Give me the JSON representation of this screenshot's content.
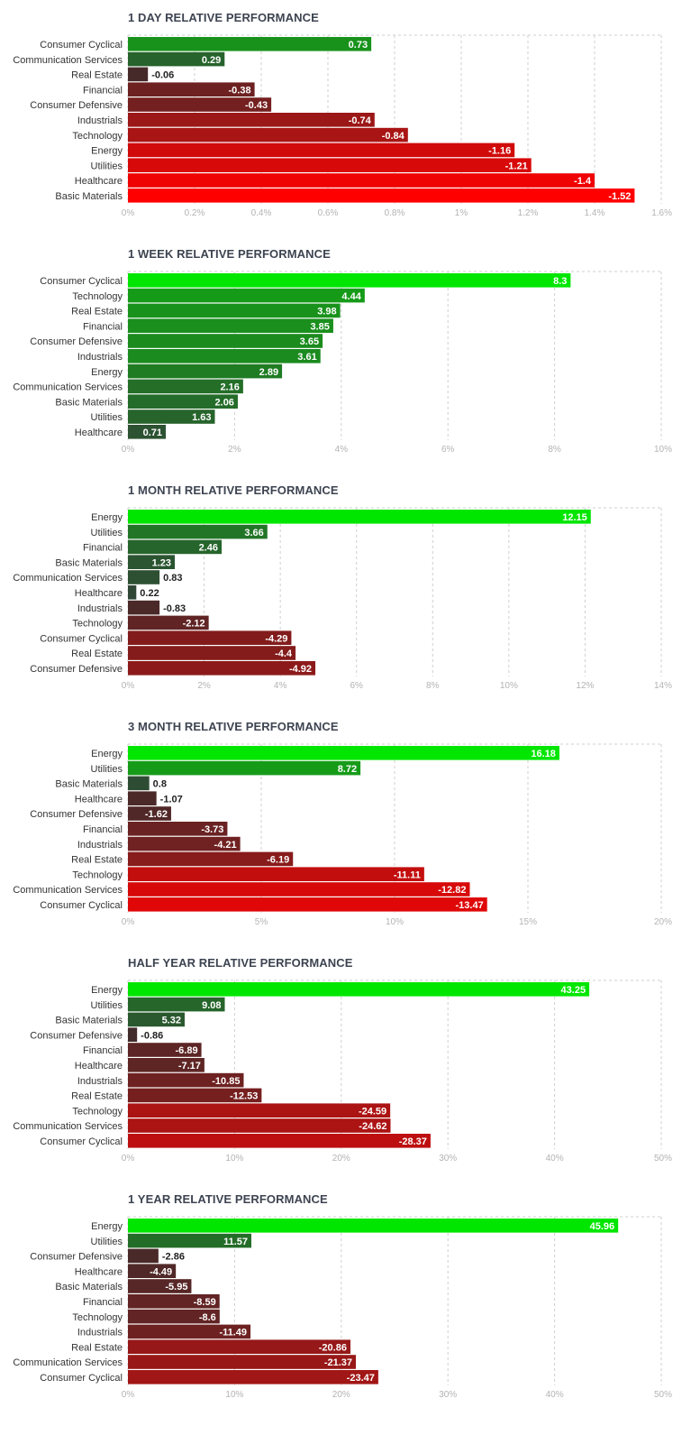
{
  "chart_data": [
    {
      "type": "bar",
      "orientation": "horizontal",
      "title": "1 DAY RELATIVE PERFORMANCE",
      "categories": [
        "Consumer Cyclical",
        "Communication Services",
        "Real Estate",
        "Financial",
        "Consumer Defensive",
        "Industrials",
        "Technology",
        "Energy",
        "Utilities",
        "Healthcare",
        "Basic Materials"
      ],
      "values": [
        0.73,
        0.29,
        -0.06,
        -0.38,
        -0.43,
        -0.74,
        -0.84,
        -1.16,
        -1.21,
        -1.4,
        -1.52
      ],
      "value_labels": [
        "0.73",
        "0.29",
        "-0.06",
        "-0.38",
        "-0.43",
        "-0.74",
        "-0.84",
        "-1.16",
        "-1.21",
        "-1.4",
        "-1.52"
      ],
      "xlim": [
        0,
        1.6
      ],
      "ticks": [
        0,
        0.2,
        0.4,
        0.6,
        0.8,
        1,
        1.2,
        1.4,
        1.6
      ],
      "tick_labels": [
        "0%",
        "0.2%",
        "0.4%",
        "0.6%",
        "0.8%",
        "1%",
        "1.2%",
        "1.4%",
        "1.6%"
      ],
      "grid": true
    },
    {
      "type": "bar",
      "orientation": "horizontal",
      "title": "1 WEEK RELATIVE PERFORMANCE",
      "categories": [
        "Consumer Cyclical",
        "Technology",
        "Real Estate",
        "Financial",
        "Consumer Defensive",
        "Industrials",
        "Energy",
        "Communication Services",
        "Basic Materials",
        "Utilities",
        "Healthcare"
      ],
      "values": [
        8.3,
        4.44,
        3.98,
        3.85,
        3.65,
        3.61,
        2.89,
        2.16,
        2.06,
        1.63,
        0.71
      ],
      "value_labels": [
        "8.3",
        "4.44",
        "3.98",
        "3.85",
        "3.65",
        "3.61",
        "2.89",
        "2.16",
        "2.06",
        "1.63",
        "0.71"
      ],
      "xlim": [
        0,
        10
      ],
      "ticks": [
        0,
        2,
        4,
        6,
        8,
        10
      ],
      "tick_labels": [
        "0%",
        "2%",
        "4%",
        "6%",
        "8%",
        "10%"
      ],
      "grid": true
    },
    {
      "type": "bar",
      "orientation": "horizontal",
      "title": "1 MONTH RELATIVE PERFORMANCE",
      "categories": [
        "Energy",
        "Utilities",
        "Financial",
        "Basic Materials",
        "Communication Services",
        "Healthcare",
        "Industrials",
        "Technology",
        "Consumer Cyclical",
        "Real Estate",
        "Consumer Defensive"
      ],
      "values": [
        12.15,
        3.66,
        2.46,
        1.23,
        0.83,
        0.22,
        -0.83,
        -2.12,
        -4.29,
        -4.4,
        -4.92
      ],
      "value_labels": [
        "12.15",
        "3.66",
        "2.46",
        "1.23",
        "0.83",
        "0.22",
        "-0.83",
        "-2.12",
        "-4.29",
        "-4.4",
        "-4.92"
      ],
      "xlim": [
        0,
        14
      ],
      "ticks": [
        0,
        2,
        4,
        6,
        8,
        10,
        12,
        14
      ],
      "tick_labels": [
        "0%",
        "2%",
        "4%",
        "6%",
        "8%",
        "10%",
        "12%",
        "14%"
      ],
      "grid": true
    },
    {
      "type": "bar",
      "orientation": "horizontal",
      "title": "3 MONTH RELATIVE PERFORMANCE",
      "categories": [
        "Energy",
        "Utilities",
        "Basic Materials",
        "Healthcare",
        "Consumer Defensive",
        "Financial",
        "Industrials",
        "Real Estate",
        "Technology",
        "Communication Services",
        "Consumer Cyclical"
      ],
      "values": [
        16.18,
        8.72,
        0.8,
        -1.07,
        -1.62,
        -3.73,
        -4.21,
        -6.19,
        -11.11,
        -12.82,
        -13.47
      ],
      "value_labels": [
        "16.18",
        "8.72",
        "0.8",
        "-1.07",
        "-1.62",
        "-3.73",
        "-4.21",
        "-6.19",
        "-11.11",
        "-12.82",
        "-13.47"
      ],
      "xlim": [
        0,
        20
      ],
      "ticks": [
        0,
        5,
        10,
        15,
        20
      ],
      "tick_labels": [
        "0%",
        "5%",
        "10%",
        "15%",
        "20%"
      ],
      "grid": true
    },
    {
      "type": "bar",
      "orientation": "horizontal",
      "title": "HALF YEAR RELATIVE PERFORMANCE",
      "categories": [
        "Energy",
        "Utilities",
        "Basic Materials",
        "Consumer Defensive",
        "Financial",
        "Healthcare",
        "Industrials",
        "Real Estate",
        "Technology",
        "Communication Services",
        "Consumer Cyclical"
      ],
      "values": [
        43.25,
        9.08,
        5.32,
        -0.86,
        -6.89,
        -7.17,
        -10.85,
        -12.53,
        -24.59,
        -24.62,
        -28.37
      ],
      "value_labels": [
        "43.25",
        "9.08",
        "5.32",
        "-0.86",
        "-6.89",
        "-7.17",
        "-10.85",
        "-12.53",
        "-24.59",
        "-24.62",
        "-28.37"
      ],
      "xlim": [
        0,
        50
      ],
      "ticks": [
        0,
        10,
        20,
        30,
        40,
        50
      ],
      "tick_labels": [
        "0%",
        "10%",
        "20%",
        "30%",
        "40%",
        "50%"
      ],
      "grid": true
    },
    {
      "type": "bar",
      "orientation": "horizontal",
      "title": "1 YEAR RELATIVE PERFORMANCE",
      "categories": [
        "Energy",
        "Utilities",
        "Consumer Defensive",
        "Healthcare",
        "Basic Materials",
        "Financial",
        "Technology",
        "Industrials",
        "Real Estate",
        "Communication Services",
        "Consumer Cyclical"
      ],
      "values": [
        45.96,
        11.57,
        -2.86,
        -4.49,
        -5.95,
        -8.59,
        -8.6,
        -11.49,
        -20.86,
        -21.37,
        -23.47
      ],
      "value_labels": [
        "45.96",
        "11.57",
        "-2.86",
        "-4.49",
        "-5.95",
        "-8.59",
        "-8.6",
        "-11.49",
        "-20.86",
        "-21.37",
        "-23.47"
      ],
      "xlim": [
        0,
        50
      ],
      "ticks": [
        0,
        10,
        20,
        30,
        40,
        50
      ],
      "tick_labels": [
        "0%",
        "10%",
        "20%",
        "30%",
        "40%",
        "50%"
      ],
      "grid": true
    }
  ]
}
